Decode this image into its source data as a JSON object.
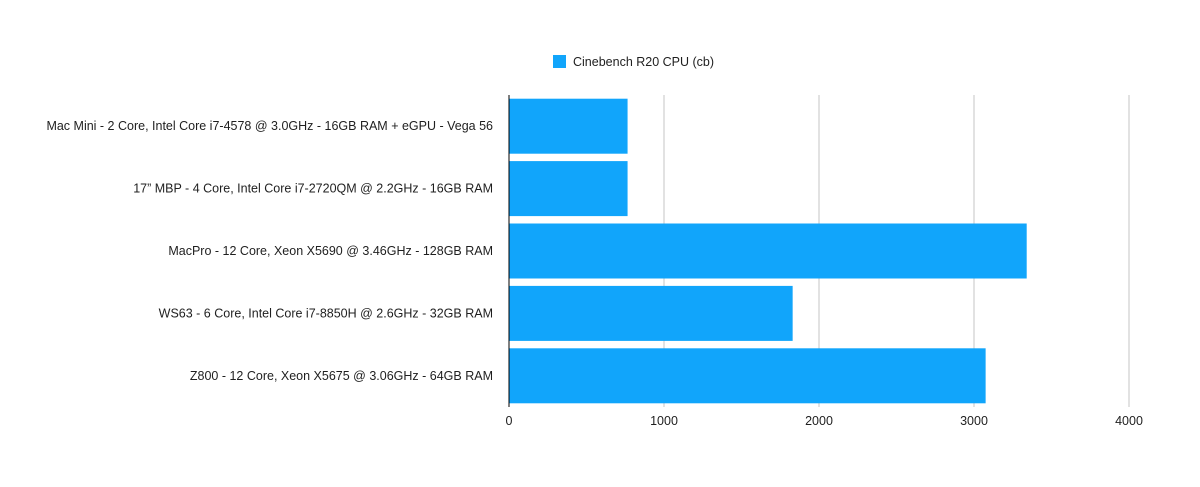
{
  "chart_data": {
    "type": "bar",
    "orientation": "horizontal",
    "title": "",
    "xlabel": "",
    "ylabel": "",
    "categories": [
      "Mac Mini - 2 Core, Intel Core i7-4578 @ 3.0GHz - 16GB RAM + eGPU - Vega 56",
      "17” MBP - 4 Core, Intel Core i7-2720QM @ 2.2GHz - 16GB RAM",
      "MacPro - 12 Core, Xeon X5690 @ 3.46GHz - 128GB RAM",
      "WS63 - 6 Core, Intel Core i7-8850H @ 2.6GHz - 32GB RAM",
      "Z800 - 12 Core, Xeon X5675 @ 3.06GHz - 64GB RAM"
    ],
    "series": [
      {
        "name": "Cinebench R20 CPU (cb)",
        "color": "#11a5fb",
        "values": [
          765,
          765,
          3340,
          1830,
          3075
        ]
      }
    ],
    "xlim": [
      0,
      4000
    ],
    "xticks": [
      0,
      1000,
      2000,
      3000,
      4000
    ],
    "grid": true,
    "grid_color": "#c4c4c4",
    "legend_position": "top-center"
  }
}
